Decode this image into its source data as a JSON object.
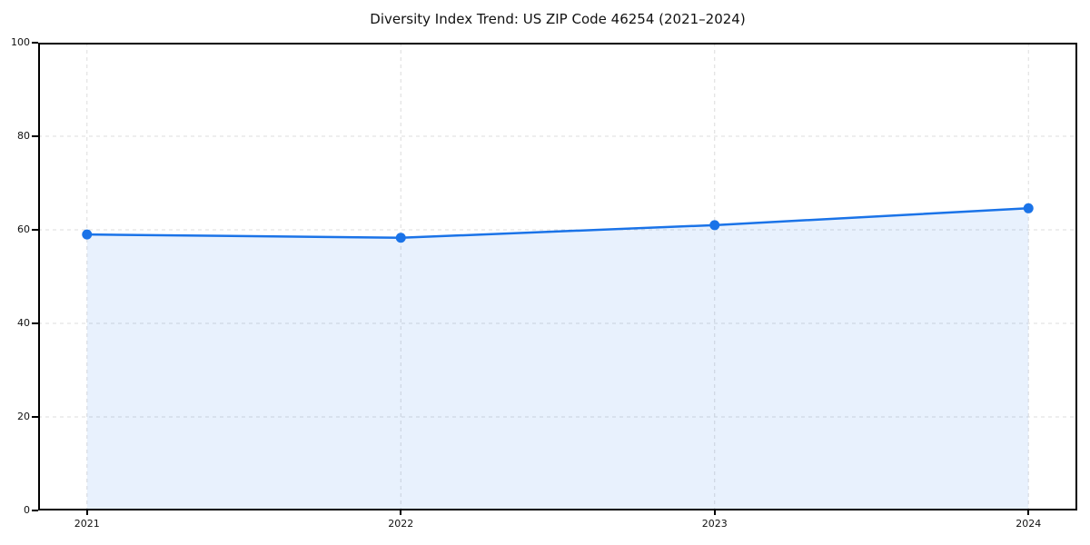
{
  "chart_data": {
    "type": "line",
    "title": "Diversity Index Trend: US ZIP Code 46254 (2021–2024)",
    "categories": [
      "2021",
      "2022",
      "2023",
      "2024"
    ],
    "series": [
      {
        "name": "Diversity Index",
        "values": [
          59.0,
          58.3,
          61.0,
          64.6
        ]
      }
    ],
    "xlabel": "",
    "ylabel": "",
    "ylim": [
      0,
      100
    ],
    "yticks": [
      0,
      20,
      40,
      60,
      80,
      100
    ],
    "grid": true,
    "grid_style": "dashed",
    "legend_position": "none",
    "markers": true,
    "area_fill": true,
    "colors": {
      "line": "#1a73e8",
      "marker": "#1a73e8",
      "area_fill": "rgba(26,115,232,0.10)",
      "grid": "#dcdcdc",
      "axis": "#000000",
      "tick_text": "#111111",
      "background": "#ffffff"
    }
  }
}
